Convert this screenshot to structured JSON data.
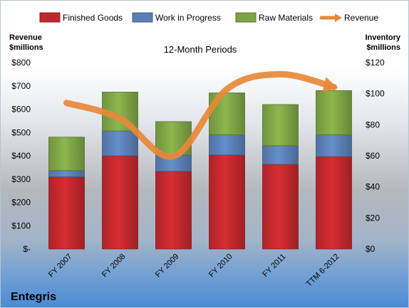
{
  "chart_data": {
    "type": "bar",
    "stacked": true,
    "title": "12-Month Periods",
    "company": "Entegris",
    "categories": [
      "FY 2007",
      "FY 2008",
      "FY 2009",
      "FY 2010",
      "FY 2011",
      "TTM 6-2012"
    ],
    "left_axis": {
      "title_line1": "Revenue",
      "title_line2": "$millions",
      "ylim": [
        0,
        800
      ],
      "ticks": [
        "$-",
        "$100",
        "$200",
        "$300",
        "$400",
        "$500",
        "$600",
        "$700",
        "$800"
      ]
    },
    "right_axis": {
      "title_line1": "Inventory",
      "title_line2": "$millions",
      "ylim": [
        0,
        120
      ],
      "ticks": [
        "$0",
        "$20",
        "$40",
        "$60",
        "$80",
        "$100",
        "$120"
      ]
    },
    "series": [
      {
        "name": "Finished Goods",
        "axis": "right",
        "color": "#c0282d",
        "values": [
          46.5,
          60,
          50,
          60.5,
          54.5,
          59.5
        ]
      },
      {
        "name": "Work in Progress",
        "axis": "right",
        "color": "#5a7fb5",
        "values": [
          4,
          16,
          10.5,
          13,
          12,
          14
        ]
      },
      {
        "name": "Raw Materials",
        "axis": "right",
        "color": "#7da345",
        "values": [
          21.5,
          25,
          21.5,
          27,
          26.5,
          28.5
        ]
      },
      {
        "name": "Revenue",
        "axis": "left",
        "type": "line",
        "color": "#e8883a",
        "values": [
          627,
          560,
          398,
          686,
          750,
          695
        ]
      }
    ],
    "legend_position": "top",
    "grid": false
  }
}
